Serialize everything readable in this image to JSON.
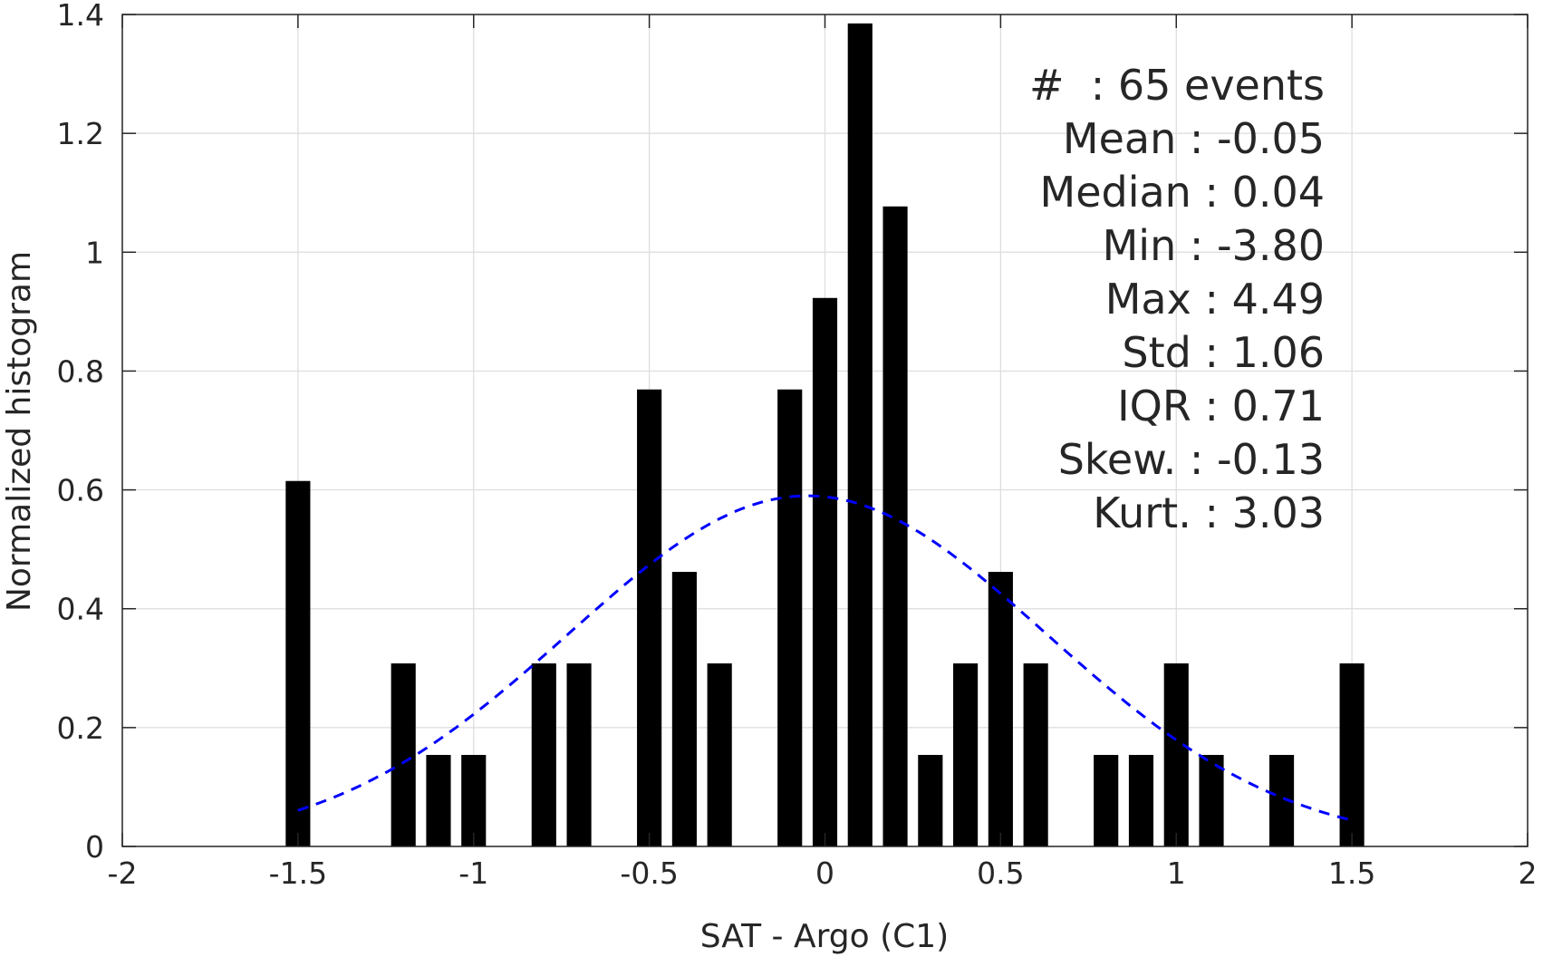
{
  "chart_data": {
    "type": "bar",
    "title": "",
    "xlabel": "SAT - Argo (C1)",
    "ylabel": "Normalized histogram",
    "xlim": [
      -2,
      2
    ],
    "ylim": [
      0,
      1.4
    ],
    "xticks": [
      -2,
      -1.5,
      -1,
      -0.5,
      0,
      0.5,
      1,
      1.5,
      2
    ],
    "xtick_labels": [
      "-2",
      "-1.5",
      "-1",
      "-0.5",
      "0",
      "0.5",
      "1",
      "1.5",
      "2"
    ],
    "yticks": [
      0,
      0.2,
      0.4,
      0.6,
      0.8,
      1,
      1.2,
      1.4
    ],
    "ytick_labels": [
      "0",
      "0.2",
      "0.4",
      "0.6",
      "0.8",
      "1",
      "1.2",
      "1.4"
    ],
    "grid": true,
    "bar_color": "#000000",
    "bar_width": 0.07,
    "bars": [
      {
        "x": -1.5,
        "y": 0.615
      },
      {
        "x": -1.2,
        "y": 0.308
      },
      {
        "x": -1.1,
        "y": 0.154
      },
      {
        "x": -1.0,
        "y": 0.154
      },
      {
        "x": -0.8,
        "y": 0.308
      },
      {
        "x": -0.7,
        "y": 0.308
      },
      {
        "x": -0.5,
        "y": 0.769
      },
      {
        "x": -0.4,
        "y": 0.462
      },
      {
        "x": -0.3,
        "y": 0.308
      },
      {
        "x": -0.1,
        "y": 0.769
      },
      {
        "x": 0.0,
        "y": 0.923
      },
      {
        "x": 0.1,
        "y": 1.385
      },
      {
        "x": 0.2,
        "y": 1.077
      },
      {
        "x": 0.3,
        "y": 0.154
      },
      {
        "x": 0.4,
        "y": 0.308
      },
      {
        "x": 0.5,
        "y": 0.462
      },
      {
        "x": 0.6,
        "y": 0.308
      },
      {
        "x": 0.8,
        "y": 0.154
      },
      {
        "x": 0.9,
        "y": 0.154
      },
      {
        "x": 1.0,
        "y": 0.308
      },
      {
        "x": 1.1,
        "y": 0.154
      },
      {
        "x": 1.3,
        "y": 0.154
      },
      {
        "x": 1.5,
        "y": 0.308
      }
    ],
    "fit_curve": {
      "kind": "normal",
      "mean": -0.05,
      "std": 0.68,
      "peak": 0.59,
      "x_range": [
        -1.5,
        1.5
      ],
      "color": "#0000ff",
      "style": "dashed"
    },
    "stats": [
      "#  : 65 events",
      "Mean : -0.05",
      "Median : 0.04",
      "Min : -3.80",
      "Max : 4.49",
      "Std : 1.06",
      "IQR : 0.71",
      "Skew. : -0.13",
      "Kurt. : 3.03"
    ]
  }
}
